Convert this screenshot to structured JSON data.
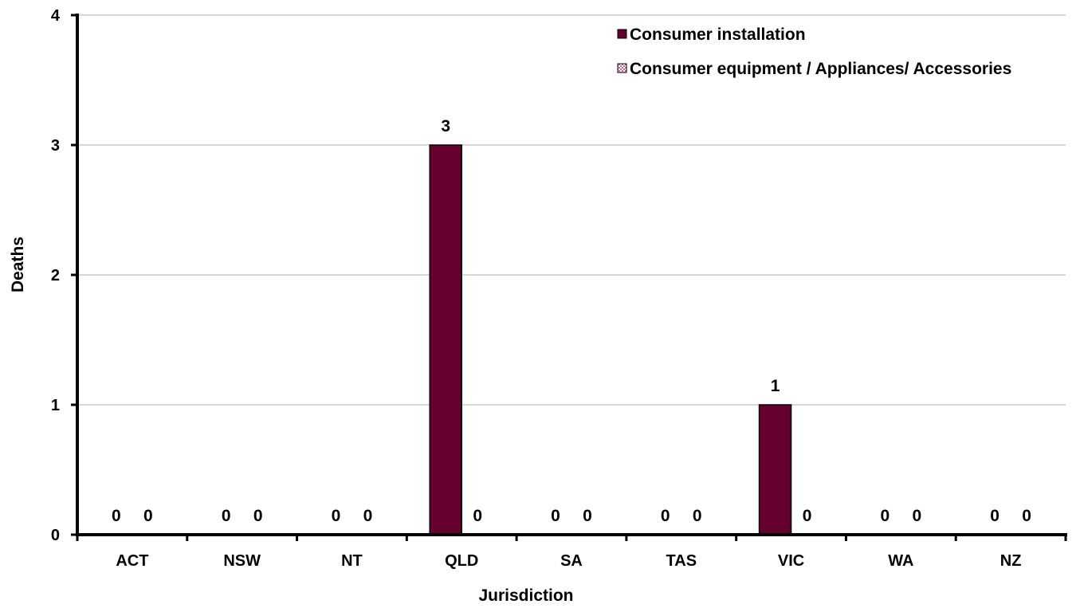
{
  "chart_data": {
    "type": "bar",
    "categories": [
      "ACT",
      "NSW",
      "NT",
      "QLD",
      "SA",
      "TAS",
      "VIC",
      "WA",
      "NZ"
    ],
    "series": [
      {
        "name": "Consumer installation",
        "color": "#66002e",
        "values": [
          0,
          0,
          0,
          3,
          0,
          0,
          1,
          0,
          0
        ]
      },
      {
        "name": "Consumer equipment / Appliances/ Accessories",
        "color": "#ffffff",
        "pattern": "checker-pink",
        "values": [
          0,
          0,
          0,
          0,
          0,
          0,
          0,
          0,
          0
        ]
      }
    ],
    "xlabel": "Jurisdiction",
    "ylabel": "Deaths",
    "ylim": [
      0,
      4
    ],
    "yticks": [
      "0",
      "1",
      "2",
      "3",
      "4"
    ],
    "grid": true,
    "legend_position": "top-right"
  }
}
